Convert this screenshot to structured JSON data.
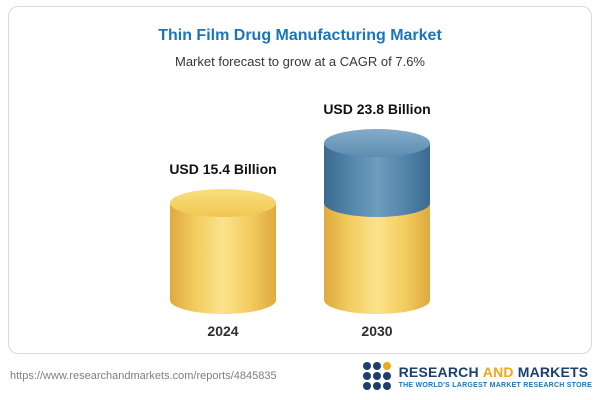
{
  "header": {
    "title": "Thin Film Drug Manufacturing Market",
    "subtitle": "Market forecast to grow at a CAGR of 7.6%"
  },
  "chart_data": {
    "type": "bar",
    "variant": "3d-cylinder",
    "title": "Thin Film Drug Manufacturing Market",
    "subtitle": "Market forecast to grow at a CAGR of 7.6%",
    "cagr_percent": 7.6,
    "unit": "USD Billion",
    "categories": [
      "2024",
      "2030"
    ],
    "values": [
      15.4,
      23.8
    ],
    "value_labels": [
      "USD 15.4 Billion",
      "USD 23.8 Billion"
    ],
    "stacked_segments": {
      "2024": [
        {
          "label": "base",
          "value": 15.4,
          "color": "#f3cd60"
        }
      ],
      "2030": [
        {
          "label": "base",
          "value": 15.4,
          "color": "#f3cd60"
        },
        {
          "label": "growth",
          "value": 8.4,
          "color": "#5485ab"
        }
      ]
    },
    "ylim": [
      0,
      25
    ],
    "grid": false,
    "legend": "none",
    "colors": {
      "gold": "#f3cd60",
      "blue": "#5485ab",
      "title_blue": "#1b75bc"
    }
  },
  "footer": {
    "url": "https://www.researchandmarkets.com/reports/4845835",
    "logo": {
      "word1": "RESEARCH",
      "word2": "AND",
      "word3": "MARKETS",
      "tagline": "THE WORLD'S LARGEST MARKET RESEARCH STORE"
    }
  }
}
